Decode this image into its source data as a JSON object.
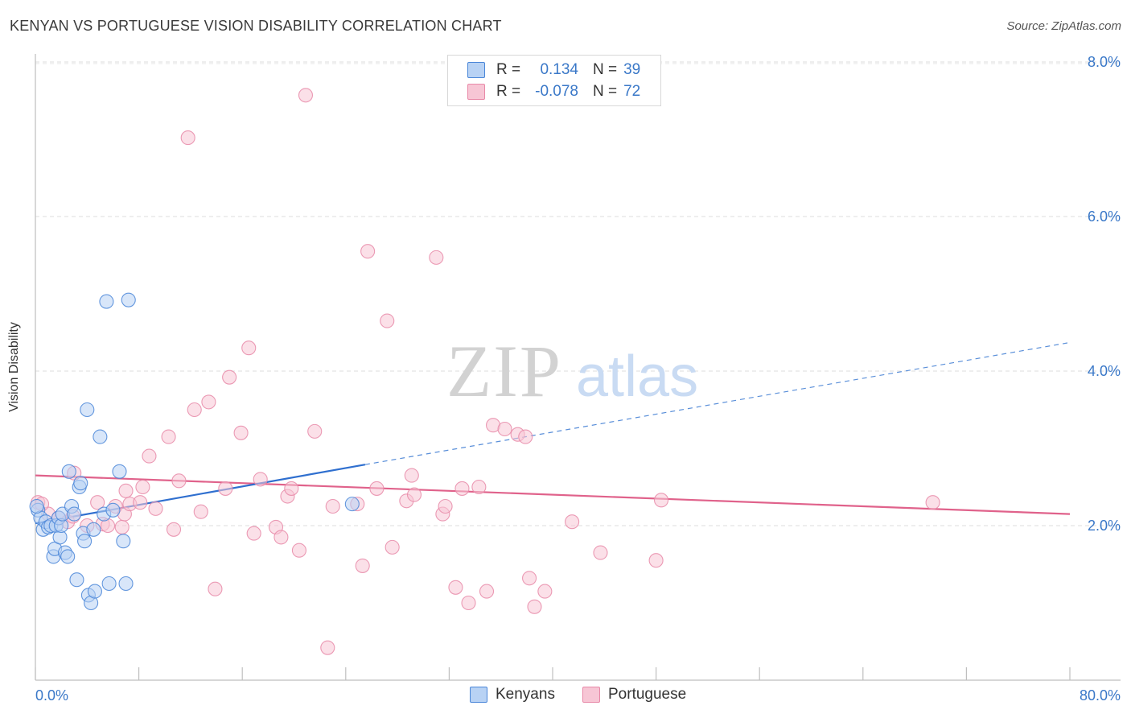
{
  "title": "KENYAN VS PORTUGUESE VISION DISABILITY CORRELATION CHART",
  "source": "Source: ZipAtlas.com",
  "watermark": {
    "zip": "ZIP",
    "atlas": "atlas"
  },
  "legend": {
    "rows": [
      {
        "r_label": "R =",
        "r_value": "0.134",
        "n_label": "N =",
        "n_value": "39",
        "color": "#4a86d8",
        "fill": "#b8d2f4"
      },
      {
        "r_label": "R =",
        "r_value": "-0.078",
        "n_label": "N =",
        "n_value": "72",
        "color": "#e889a8",
        "fill": "#f7c6d5"
      }
    ]
  },
  "bottom_legend": [
    "Kenyans",
    "Portuguese"
  ],
  "chart_data": {
    "type": "scatter",
    "title": "KENYAN VS PORTUGUESE VISION DISABILITY CORRELATION CHART",
    "xlabel": "",
    "ylabel": "Vision Disability",
    "xlim": [
      0,
      80
    ],
    "ylim": [
      0,
      8.4
    ],
    "x_tick_labels": [
      "0.0%",
      "80.0%"
    ],
    "y_ticks": [
      2,
      4,
      6,
      8
    ],
    "y_tick_labels": [
      "2.0%",
      "4.0%",
      "6.0%",
      "8.0%"
    ],
    "grid": true,
    "legend_position": "top-center",
    "series": [
      {
        "name": "Kenyans",
        "color": "#4a86d8",
        "fill": "#b8d2f4",
        "trend": {
          "x": [
            0,
            25.5
          ],
          "y": [
            2.03,
            2.79
          ],
          "dashed_to": [
            80,
            4.37
          ]
        },
        "points": [
          [
            0.2,
            2.2
          ],
          [
            0.4,
            2.1
          ],
          [
            0.6,
            1.95
          ],
          [
            0.8,
            2.05
          ],
          [
            1.0,
            1.98
          ],
          [
            1.2,
            2.0
          ],
          [
            1.4,
            1.6
          ],
          [
            1.5,
            1.7
          ],
          [
            1.6,
            2.0
          ],
          [
            1.8,
            2.1
          ],
          [
            1.9,
            1.85
          ],
          [
            2.0,
            2.0
          ],
          [
            2.1,
            2.15
          ],
          [
            2.3,
            1.65
          ],
          [
            2.5,
            1.6
          ],
          [
            2.6,
            2.7
          ],
          [
            2.8,
            2.25
          ],
          [
            3.0,
            2.15
          ],
          [
            3.2,
            1.3
          ],
          [
            3.4,
            2.5
          ],
          [
            3.5,
            2.55
          ],
          [
            3.7,
            1.9
          ],
          [
            3.8,
            1.8
          ],
          [
            4.0,
            3.5
          ],
          [
            4.1,
            1.1
          ],
          [
            4.3,
            1.0
          ],
          [
            4.5,
            1.95
          ],
          [
            4.6,
            1.15
          ],
          [
            5.0,
            3.15
          ],
          [
            5.3,
            2.15
          ],
          [
            5.5,
            4.9
          ],
          [
            5.7,
            1.25
          ],
          [
            6.0,
            2.2
          ],
          [
            6.5,
            2.7
          ],
          [
            6.8,
            1.8
          ],
          [
            7.0,
            1.25
          ],
          [
            7.2,
            4.92
          ],
          [
            24.5,
            2.28
          ],
          [
            0.1,
            2.25
          ]
        ]
      },
      {
        "name": "Portuguese",
        "color": "#e889a8",
        "fill": "#f7c6d5",
        "trend": {
          "x": [
            0,
            80
          ],
          "y": [
            2.65,
            2.15
          ]
        },
        "points": [
          [
            0.2,
            2.3
          ],
          [
            1.0,
            2.15
          ],
          [
            1.8,
            2.1
          ],
          [
            2.5,
            2.05
          ],
          [
            2.9,
            2.12
          ],
          [
            3.0,
            2.68
          ],
          [
            4.0,
            2.0
          ],
          [
            4.8,
            2.3
          ],
          [
            5.2,
            2.02
          ],
          [
            5.6,
            2.0
          ],
          [
            6.2,
            2.25
          ],
          [
            6.7,
            1.98
          ],
          [
            6.9,
            2.15
          ],
          [
            7.0,
            2.45
          ],
          [
            7.3,
            2.28
          ],
          [
            8.1,
            2.3
          ],
          [
            8.3,
            2.5
          ],
          [
            8.8,
            2.9
          ],
          [
            9.3,
            2.22
          ],
          [
            10.3,
            3.15
          ],
          [
            10.7,
            1.95
          ],
          [
            11.1,
            2.58
          ],
          [
            11.8,
            7.02
          ],
          [
            12.3,
            3.5
          ],
          [
            12.8,
            2.18
          ],
          [
            13.4,
            3.6
          ],
          [
            13.9,
            1.18
          ],
          [
            14.7,
            2.48
          ],
          [
            15.0,
            3.92
          ],
          [
            15.9,
            3.2
          ],
          [
            16.5,
            4.3
          ],
          [
            16.9,
            1.9
          ],
          [
            17.4,
            2.6
          ],
          [
            18.6,
            1.98
          ],
          [
            19.0,
            1.85
          ],
          [
            19.5,
            2.38
          ],
          [
            19.8,
            2.48
          ],
          [
            20.4,
            1.68
          ],
          [
            20.9,
            7.57
          ],
          [
            21.6,
            3.22
          ],
          [
            22.6,
            0.42
          ],
          [
            23.0,
            2.25
          ],
          [
            24.9,
            2.28
          ],
          [
            25.3,
            1.48
          ],
          [
            25.7,
            5.55
          ],
          [
            26.4,
            2.48
          ],
          [
            27.2,
            4.65
          ],
          [
            27.6,
            1.72
          ],
          [
            28.7,
            2.32
          ],
          [
            29.1,
            2.65
          ],
          [
            29.3,
            2.4
          ],
          [
            31.0,
            5.47
          ],
          [
            31.5,
            2.15
          ],
          [
            31.7,
            2.25
          ],
          [
            32.5,
            1.2
          ],
          [
            33.0,
            2.48
          ],
          [
            33.5,
            1.0
          ],
          [
            34.3,
            2.5
          ],
          [
            34.9,
            1.15
          ],
          [
            35.4,
            3.3
          ],
          [
            36.3,
            3.25
          ],
          [
            37.3,
            3.18
          ],
          [
            37.9,
            3.15
          ],
          [
            38.2,
            1.32
          ],
          [
            38.6,
            0.95
          ],
          [
            39.4,
            1.15
          ],
          [
            41.5,
            2.05
          ],
          [
            43.7,
            1.65
          ],
          [
            48.0,
            1.55
          ],
          [
            48.4,
            2.33
          ],
          [
            69.4,
            2.3
          ],
          [
            0.5,
            2.28
          ]
        ]
      }
    ]
  }
}
